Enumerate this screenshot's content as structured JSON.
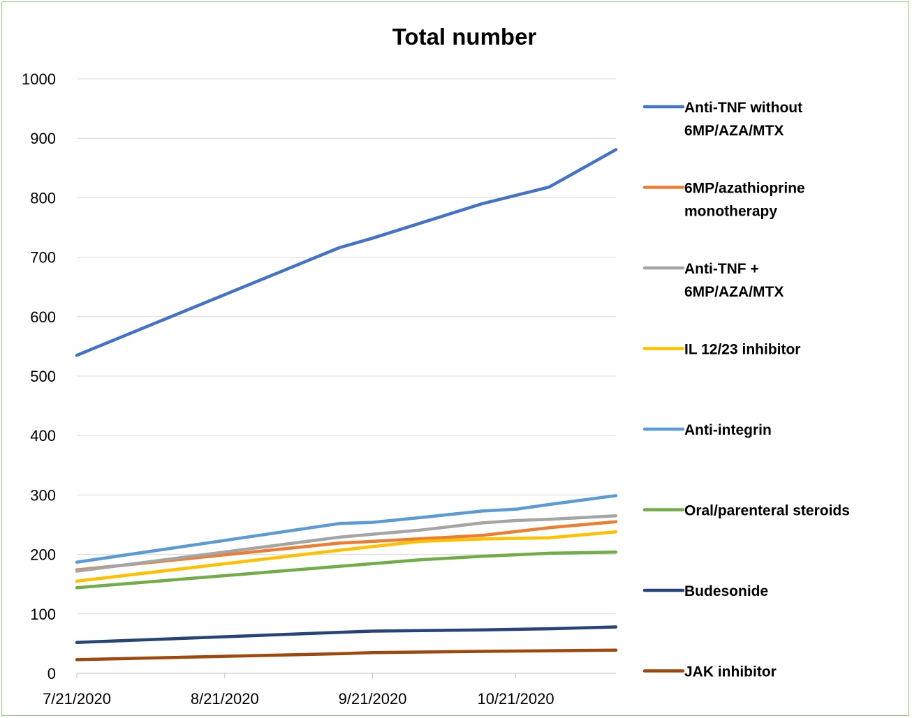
{
  "chart_data": {
    "type": "line",
    "title": "Total number",
    "xlabel": "",
    "ylabel": "",
    "ylim": [
      0,
      1000
    ],
    "xlim": [
      "2020-07-21",
      "2020-11-11"
    ],
    "yticks": [
      0,
      100,
      200,
      300,
      400,
      500,
      600,
      700,
      800,
      900,
      1000
    ],
    "xticks": [
      {
        "date": "2020-07-21",
        "label": "7/21/2020"
      },
      {
        "date": "2020-08-21",
        "label": "8/21/2020"
      },
      {
        "date": "2020-09-21",
        "label": "9/21/2020"
      },
      {
        "date": "2020-10-21",
        "label": "10/21/2020"
      }
    ],
    "grid": "horizontal",
    "legend_position": "right",
    "x": [
      "2020-07-21",
      "2020-09-14",
      "2020-09-23",
      "2020-10-01",
      "2020-10-08",
      "2020-10-15",
      "2020-10-22",
      "2020-10-28",
      "2020-11-04",
      "2020-11-11"
    ],
    "series": [
      {
        "name": [
          "Anti-TNF without",
          "6MP/AZA/MTX"
        ],
        "color": "#4472c4",
        "points": [
          [
            "2020-07-21",
            535
          ],
          [
            "2020-09-14",
            716
          ],
          [
            "2020-09-21",
            732
          ],
          [
            "2020-10-14",
            790
          ],
          [
            "2020-10-28",
            818
          ],
          [
            "2020-11-11",
            881
          ]
        ]
      },
      {
        "name": [
          "6MP/azathioprine",
          "monotherapy"
        ],
        "color": "#ed7d31",
        "points": [
          [
            "2020-07-21",
            174
          ],
          [
            "2020-09-14",
            219
          ],
          [
            "2020-09-21",
            222
          ],
          [
            "2020-10-14",
            232
          ],
          [
            "2020-10-28",
            245
          ],
          [
            "2020-11-11",
            255
          ]
        ]
      },
      {
        "name": [
          "Anti-TNF +",
          "6MP/AZA/MTX"
        ],
        "color": "#a5a5a5",
        "points": [
          [
            "2020-07-21",
            172
          ],
          [
            "2020-09-14",
            229
          ],
          [
            "2020-09-21",
            234
          ],
          [
            "2020-10-01",
            241
          ],
          [
            "2020-10-14",
            253
          ],
          [
            "2020-10-21",
            257
          ],
          [
            "2020-10-28",
            259
          ],
          [
            "2020-11-11",
            265
          ]
        ]
      },
      {
        "name": [
          "IL 12/23 inhibitor"
        ],
        "color": "#ffc000",
        "points": [
          [
            "2020-07-21",
            155
          ],
          [
            "2020-09-14",
            207
          ],
          [
            "2020-10-01",
            222
          ],
          [
            "2020-10-14",
            226
          ],
          [
            "2020-10-28",
            228
          ],
          [
            "2020-11-11",
            238
          ]
        ]
      },
      {
        "name": [
          "Anti-integrin"
        ],
        "color": "#5b9bd5",
        "points": [
          [
            "2020-07-21",
            187
          ],
          [
            "2020-09-14",
            252
          ],
          [
            "2020-09-21",
            254
          ],
          [
            "2020-10-01",
            262
          ],
          [
            "2020-10-14",
            273
          ],
          [
            "2020-10-21",
            276
          ],
          [
            "2020-10-28",
            284
          ],
          [
            "2020-11-11",
            299
          ]
        ]
      },
      {
        "name": [
          "Oral/parenteral steroids"
        ],
        "color": "#70ad47",
        "points": [
          [
            "2020-07-21",
            144
          ],
          [
            "2020-09-14",
            180
          ],
          [
            "2020-10-01",
            191
          ],
          [
            "2020-10-14",
            197
          ],
          [
            "2020-10-28",
            202
          ],
          [
            "2020-11-11",
            204
          ]
        ]
      },
      {
        "name": [
          "Budesonide"
        ],
        "color": "#264478",
        "points": [
          [
            "2020-07-21",
            52
          ],
          [
            "2020-09-14",
            69
          ],
          [
            "2020-09-21",
            71
          ],
          [
            "2020-10-14",
            73
          ],
          [
            "2020-10-28",
            75
          ],
          [
            "2020-11-11",
            78
          ]
        ]
      },
      {
        "name": [
          "JAK inhibitor"
        ],
        "color": "#9e480e",
        "points": [
          [
            "2020-07-21",
            23
          ],
          [
            "2020-09-14",
            33
          ],
          [
            "2020-09-21",
            35
          ],
          [
            "2020-10-14",
            37
          ],
          [
            "2020-10-28",
            38
          ],
          [
            "2020-11-11",
            39
          ]
        ]
      }
    ]
  }
}
